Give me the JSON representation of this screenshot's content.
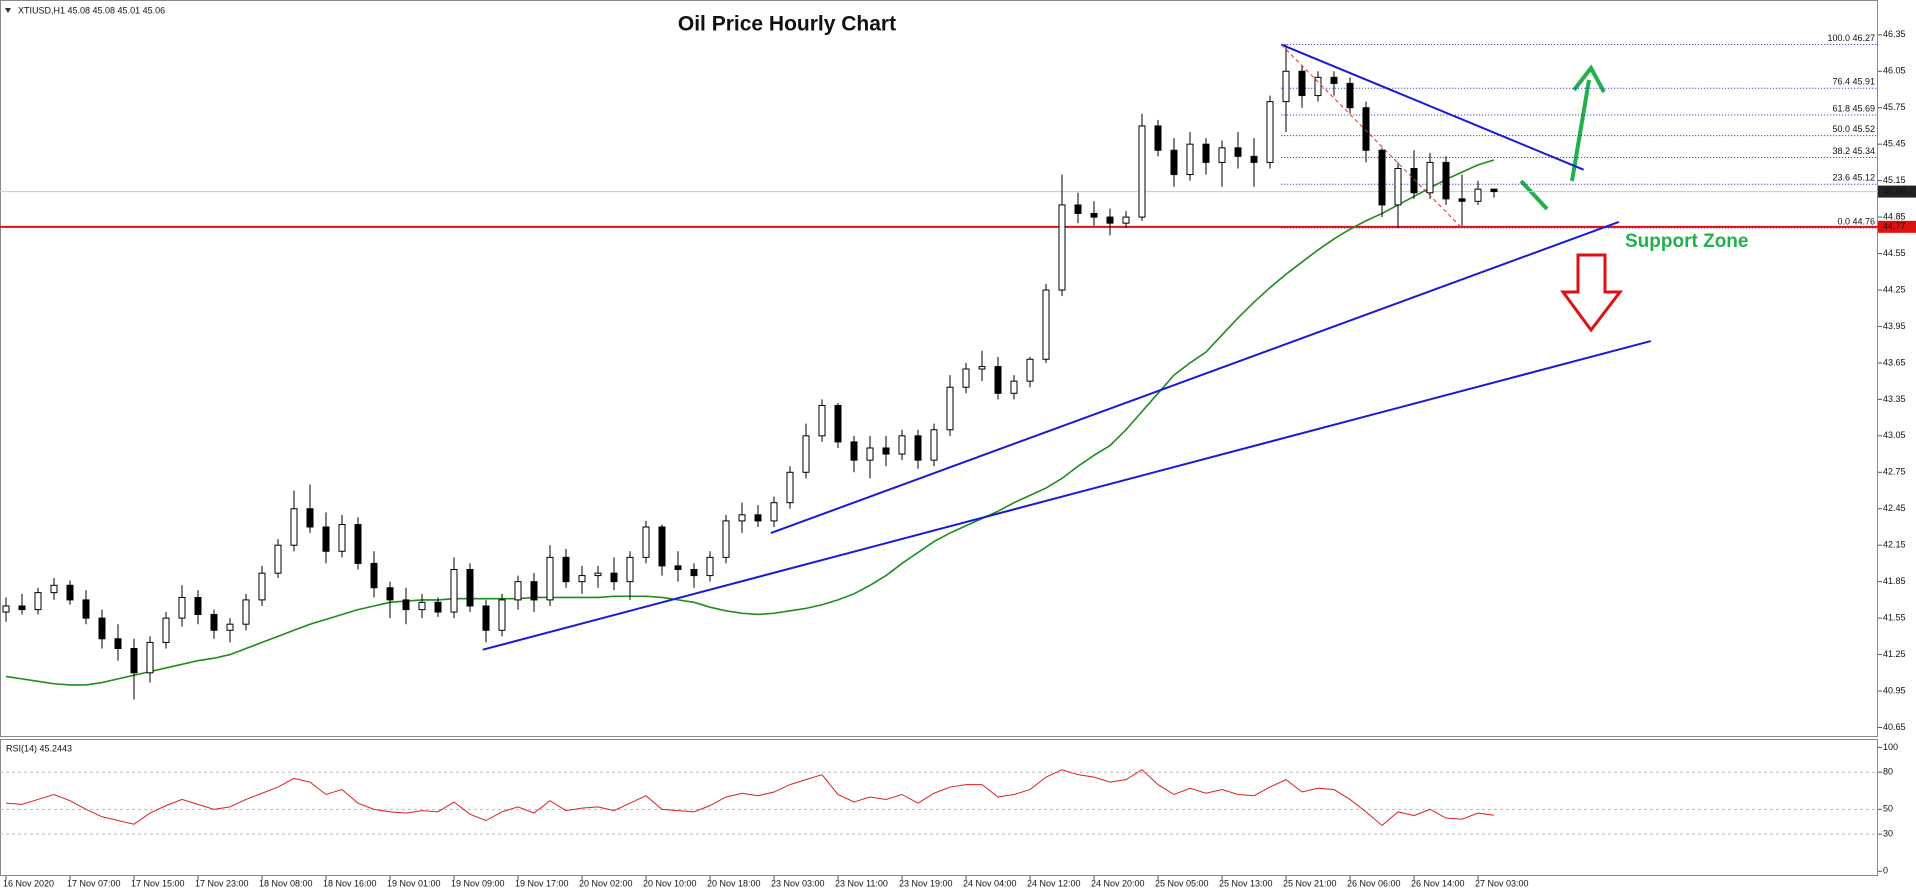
{
  "header": "XTIUSD,H1  45.08 45.08 45.01 45.06",
  "annotation": "Support Zone",
  "chart_data": [
    {
      "type": "candlestick",
      "title": "Oil Price Hourly Chart",
      "ylim": [
        40.58,
        46.62
      ],
      "yticks": [
        46.35,
        46.05,
        45.75,
        45.45,
        45.15,
        44.85,
        44.55,
        44.25,
        43.95,
        43.65,
        43.35,
        43.05,
        42.75,
        42.45,
        42.15,
        41.85,
        41.55,
        41.25,
        40.95,
        40.65
      ],
      "up_color": "#ffffff",
      "down_color": "#000000",
      "candles": [
        [
          41.6,
          41.72,
          41.52,
          41.65
        ],
        [
          41.65,
          41.75,
          41.58,
          41.62
        ],
        [
          41.62,
          41.8,
          41.58,
          41.76
        ],
        [
          41.76,
          41.88,
          41.7,
          41.82
        ],
        [
          41.82,
          41.86,
          41.66,
          41.7
        ],
        [
          41.7,
          41.78,
          41.5,
          41.55
        ],
        [
          41.55,
          41.62,
          41.3,
          41.38
        ],
        [
          41.38,
          41.5,
          41.2,
          41.3
        ],
        [
          41.3,
          41.38,
          40.88,
          41.1
        ],
        [
          41.1,
          41.4,
          41.02,
          41.35
        ],
        [
          41.35,
          41.6,
          41.3,
          41.55
        ],
        [
          41.55,
          41.82,
          41.48,
          41.72
        ],
        [
          41.72,
          41.78,
          41.5,
          41.58
        ],
        [
          41.58,
          41.62,
          41.38,
          41.45
        ],
        [
          41.45,
          41.55,
          41.35,
          41.5
        ],
        [
          41.5,
          41.75,
          41.45,
          41.7
        ],
        [
          41.7,
          41.98,
          41.65,
          41.92
        ],
        [
          41.92,
          42.2,
          41.88,
          42.15
        ],
        [
          42.15,
          42.6,
          42.1,
          42.45
        ],
        [
          42.45,
          42.65,
          42.25,
          42.3
        ],
        [
          42.3,
          42.42,
          42.0,
          42.1
        ],
        [
          42.1,
          42.4,
          42.05,
          42.32
        ],
        [
          42.32,
          42.38,
          41.95,
          42.0
        ],
        [
          42.0,
          42.1,
          41.72,
          41.8
        ],
        [
          41.8,
          41.85,
          41.55,
          41.7
        ],
        [
          41.7,
          41.8,
          41.5,
          41.62
        ],
        [
          41.62,
          41.75,
          41.55,
          41.68
        ],
        [
          41.68,
          41.72,
          41.56,
          41.6
        ],
        [
          41.6,
          42.05,
          41.55,
          41.95
        ],
        [
          41.95,
          42.0,
          41.6,
          41.65
        ],
        [
          41.65,
          41.7,
          41.35,
          41.45
        ],
        [
          41.45,
          41.75,
          41.4,
          41.7
        ],
        [
          41.7,
          41.9,
          41.62,
          41.85
        ],
        [
          41.85,
          41.92,
          41.6,
          41.7
        ],
        [
          41.7,
          42.15,
          41.65,
          42.05
        ],
        [
          42.05,
          42.12,
          41.8,
          41.85
        ],
        [
          41.85,
          41.98,
          41.75,
          41.9
        ],
        [
          41.9,
          41.98,
          41.8,
          41.92
        ],
        [
          41.92,
          42.05,
          41.78,
          41.85
        ],
        [
          41.85,
          42.1,
          41.7,
          42.05
        ],
        [
          42.05,
          42.35,
          42.0,
          42.3
        ],
        [
          42.3,
          42.32,
          41.9,
          41.98
        ],
        [
          41.98,
          42.1,
          41.85,
          41.95
        ],
        [
          41.95,
          42.0,
          41.8,
          41.9
        ],
        [
          41.9,
          42.1,
          41.85,
          42.05
        ],
        [
          42.05,
          42.4,
          42.0,
          42.35
        ],
        [
          42.35,
          42.5,
          42.25,
          42.4
        ],
        [
          42.4,
          42.48,
          42.3,
          42.35
        ],
        [
          42.35,
          42.55,
          42.3,
          42.5
        ],
        [
          42.5,
          42.8,
          42.45,
          42.75
        ],
        [
          42.75,
          43.15,
          42.7,
          43.05
        ],
        [
          43.05,
          43.35,
          43.0,
          43.3
        ],
        [
          43.3,
          43.32,
          42.95,
          43.0
        ],
        [
          43.0,
          43.05,
          42.75,
          42.85
        ],
        [
          42.85,
          43.05,
          42.7,
          42.95
        ],
        [
          42.95,
          43.05,
          42.8,
          42.9
        ],
        [
          42.9,
          43.1,
          42.85,
          43.05
        ],
        [
          43.05,
          43.1,
          42.78,
          42.85
        ],
        [
          42.85,
          43.15,
          42.8,
          43.1
        ],
        [
          43.1,
          43.55,
          43.05,
          43.45
        ],
        [
          43.45,
          43.65,
          43.4,
          43.6
        ],
        [
          43.6,
          43.75,
          43.5,
          43.62
        ],
        [
          43.62,
          43.7,
          43.35,
          43.4
        ],
        [
          43.4,
          43.55,
          43.35,
          43.5
        ],
        [
          43.5,
          43.7,
          43.45,
          43.68
        ],
        [
          43.68,
          44.3,
          43.65,
          44.25
        ],
        [
          44.25,
          45.2,
          44.2,
          44.95
        ],
        [
          44.95,
          45.05,
          44.8,
          44.88
        ],
        [
          44.88,
          44.98,
          44.78,
          44.85
        ],
        [
          44.85,
          44.92,
          44.7,
          44.8
        ],
        [
          44.8,
          44.9,
          44.76,
          44.85
        ],
        [
          44.85,
          45.7,
          44.82,
          45.6
        ],
        [
          45.6,
          45.65,
          45.35,
          45.4
        ],
        [
          45.4,
          45.5,
          45.1,
          45.2
        ],
        [
          45.2,
          45.55,
          45.15,
          45.45
        ],
        [
          45.45,
          45.5,
          45.2,
          45.3
        ],
        [
          45.3,
          45.48,
          45.1,
          45.42
        ],
        [
          45.42,
          45.55,
          45.25,
          45.35
        ],
        [
          45.35,
          45.5,
          45.1,
          45.3
        ],
        [
          45.3,
          45.85,
          45.25,
          45.8
        ],
        [
          45.8,
          46.27,
          45.55,
          46.05
        ],
        [
          46.05,
          46.1,
          45.75,
          45.85
        ],
        [
          45.85,
          46.05,
          45.8,
          46.0
        ],
        [
          46.0,
          46.05,
          45.85,
          45.95
        ],
        [
          45.95,
          46.0,
          45.7,
          45.75
        ],
        [
          45.75,
          45.8,
          45.3,
          45.4
        ],
        [
          45.4,
          45.42,
          44.85,
          44.95
        ],
        [
          44.95,
          45.3,
          44.76,
          45.25
        ],
        [
          45.25,
          45.4,
          45.0,
          45.05
        ],
        [
          45.05,
          45.38,
          45.0,
          45.3
        ],
        [
          45.3,
          45.35,
          44.95,
          45.0
        ],
        [
          45.0,
          45.2,
          44.78,
          44.98
        ],
        [
          44.98,
          45.15,
          44.95,
          45.08
        ],
        [
          45.08,
          45.08,
          45.01,
          45.06
        ]
      ],
      "ma": {
        "color": "#1e8c1e",
        "values": [
          41.07,
          41.05,
          41.03,
          41.01,
          41.0,
          41.0,
          41.02,
          41.05,
          41.08,
          41.11,
          41.14,
          41.17,
          41.2,
          41.22,
          41.25,
          41.3,
          41.35,
          41.4,
          41.45,
          41.5,
          41.54,
          41.58,
          41.62,
          41.65,
          41.68,
          41.69,
          41.7,
          41.7,
          41.71,
          41.71,
          41.71,
          41.71,
          41.71,
          41.72,
          41.72,
          41.72,
          41.72,
          41.72,
          41.73,
          41.73,
          41.73,
          41.72,
          41.7,
          41.68,
          41.64,
          41.61,
          41.59,
          41.58,
          41.59,
          41.61,
          41.63,
          41.66,
          41.7,
          41.75,
          41.82,
          41.9,
          42.0,
          42.09,
          42.18,
          42.25,
          42.31,
          42.37,
          42.43,
          42.5,
          42.56,
          42.62,
          42.7,
          42.8,
          42.89,
          42.97,
          43.1,
          43.25,
          43.4,
          43.55,
          43.65,
          43.74,
          43.88,
          44.02,
          44.15,
          44.27,
          44.38,
          44.48,
          44.58,
          44.67,
          44.75,
          44.82,
          44.88,
          44.95,
          45.02,
          45.09,
          45.16,
          45.22,
          45.28,
          45.32
        ]
      },
      "trendlines": [
        {
          "x": [
            29.8,
            102.8
          ],
          "y": [
            41.29,
            43.83
          ],
          "color": "#1a1ad6"
        },
        {
          "x": [
            47.8,
            100.8
          ],
          "y": [
            42.25,
            44.81
          ],
          "color": "#1a1ad6"
        },
        {
          "x": [
            79.7,
            98.6
          ],
          "y": [
            46.27,
            45.24
          ],
          "color": "#1a1ad6"
        },
        {
          "x": [
            79.7,
            91.0
          ],
          "y": [
            46.27,
            44.76
          ],
          "color": "#e03030",
          "dashed": true
        }
      ],
      "fibonacci": {
        "start": 79.7,
        "color": "#1a1ad6",
        "levels": [
          {
            "value": 46.27,
            "label": "100.0 46.27"
          },
          {
            "value": 45.91,
            "label": "76.4 45.91"
          },
          {
            "value": 45.69,
            "label": "61.8 45.69"
          },
          {
            "value": 45.52,
            "label": "50.0 45.52"
          },
          {
            "value": 45.34,
            "label": "38.2 45.34"
          },
          {
            "value": 45.12,
            "label": "23.6 45.12"
          },
          {
            "value": 44.76,
            "label": "0.0 44.76"
          }
        ]
      },
      "support_line": {
        "value": 44.77,
        "color": "#e01010"
      },
      "last_price": 45.06
    },
    {
      "type": "line",
      "title": "RSI(14) 45.2443",
      "color": "#e02020",
      "ylim": [
        -3,
        106
      ],
      "yticks": [
        100,
        80,
        50,
        30,
        0
      ],
      "levels": [
        80,
        50,
        30
      ],
      "values": [
        55,
        54,
        58,
        62,
        57,
        50,
        44,
        41,
        38,
        47,
        53,
        58,
        54,
        50,
        52,
        58,
        63,
        68,
        75,
        72,
        62,
        66,
        55,
        50,
        48,
        47,
        49,
        48,
        56,
        46,
        41,
        48,
        52,
        47,
        57,
        49,
        51,
        52,
        49,
        55,
        61,
        50,
        49,
        48,
        53,
        60,
        63,
        61,
        64,
        70,
        74,
        78,
        62,
        56,
        60,
        58,
        62,
        55,
        63,
        68,
        70,
        70,
        60,
        62,
        66,
        76,
        82,
        78,
        76,
        72,
        74,
        82,
        70,
        62,
        67,
        63,
        66,
        62,
        61,
        68,
        74,
        64,
        67,
        66,
        58,
        48,
        37,
        48,
        45,
        50,
        43,
        42,
        47,
        45.24
      ],
      "xticks": [
        {
          "value": 0,
          "label": "16 Nov 2020"
        },
        {
          "value": 4,
          "label": "17 Nov 07:00"
        },
        {
          "value": 8,
          "label": "17 Nov 15:00"
        },
        {
          "value": 12,
          "label": "17 Nov 23:00"
        },
        {
          "value": 16,
          "label": "18 Nov 08:00"
        },
        {
          "value": 20,
          "label": "18 Nov 16:00"
        },
        {
          "value": 24,
          "label": "19 Nov 01:00"
        },
        {
          "value": 28,
          "label": "19 Nov 09:00"
        },
        {
          "value": 32,
          "label": "19 Nov 17:00"
        },
        {
          "value": 36,
          "label": "20 Nov 02:00"
        },
        {
          "value": 40,
          "label": "20 Nov 10:00"
        },
        {
          "value": 44,
          "label": "20 Nov 18:00"
        },
        {
          "value": 48,
          "label": "23 Nov 03:00"
        },
        {
          "value": 52,
          "label": "23 Nov 11:00"
        },
        {
          "value": 56,
          "label": "23 Nov 19:00"
        },
        {
          "value": 60,
          "label": "24 Nov 04:00"
        },
        {
          "value": 64,
          "label": "24 Nov 12:00"
        },
        {
          "value": 68,
          "label": "24 Nov 20:00"
        },
        {
          "value": 72,
          "label": "25 Nov 05:00"
        },
        {
          "value": 76,
          "label": "25 Nov 13:00"
        },
        {
          "value": 80,
          "label": "25 Nov 21:00"
        },
        {
          "value": 84,
          "label": "26 Nov 06:00"
        },
        {
          "value": 88,
          "label": "26 Nov 14:00"
        },
        {
          "value": 92,
          "label": "27 Nov 03:00"
        }
      ]
    }
  ]
}
